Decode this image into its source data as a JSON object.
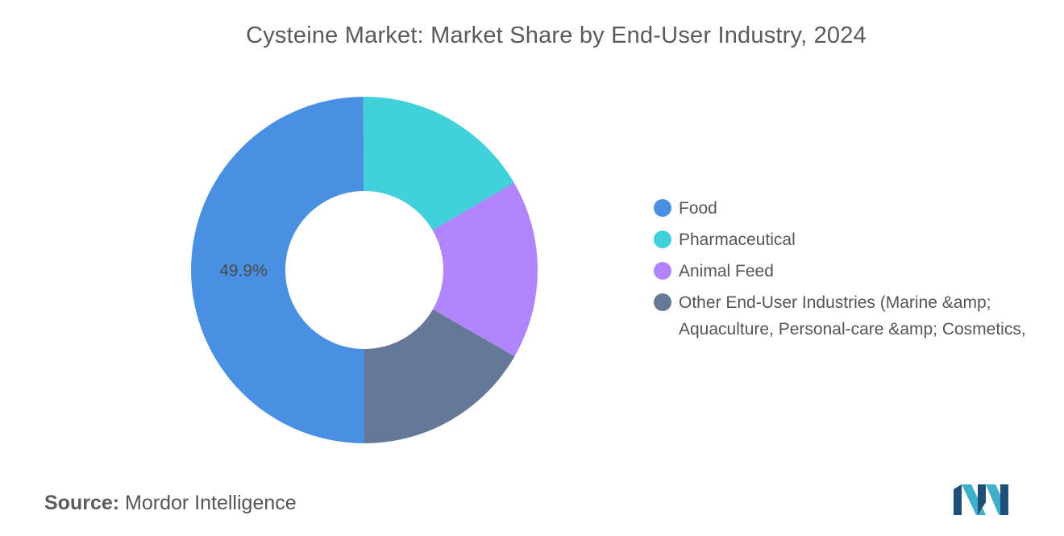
{
  "chart_data": {
    "type": "pie",
    "title": "Cysteine Market: Market Share by End-User Industry, 2024",
    "variant": "donut",
    "slices": [
      {
        "name": "Food",
        "value": 49.9,
        "color": "#4a90e2"
      },
      {
        "name": "Pharmaceutical",
        "value": 16.7,
        "color": "#40d1da"
      },
      {
        "name": "Animal Feed",
        "value": 16.7,
        "color": "#b084fb"
      },
      {
        "name": "Other End-User Industries (Marine &amp; Aquaculture, Personal-care &amp; Cosmetics,",
        "value": 16.7,
        "color": "#667897"
      }
    ],
    "data_labels": [
      {
        "slice": "Food",
        "text": "49.9%"
      }
    ],
    "legend_position": "right"
  },
  "legend": {
    "items": [
      {
        "label": "Food",
        "color": "#4a90e2"
      },
      {
        "label": "Pharmaceutical",
        "color": "#40d1da"
      },
      {
        "label": "Animal Feed",
        "color": "#b084fb"
      },
      {
        "label": "Other End-User Industries (Marine &amp; Aquaculture, Personal-care &amp; Cosmetics,",
        "color": "#667897"
      }
    ]
  },
  "source": {
    "label": "Source:",
    "text": "Mordor Intelligence"
  },
  "logo": {
    "icon": "mordor-intelligence-logo-icon",
    "colors": [
      "#1f4e79",
      "#3fb0c9"
    ]
  }
}
